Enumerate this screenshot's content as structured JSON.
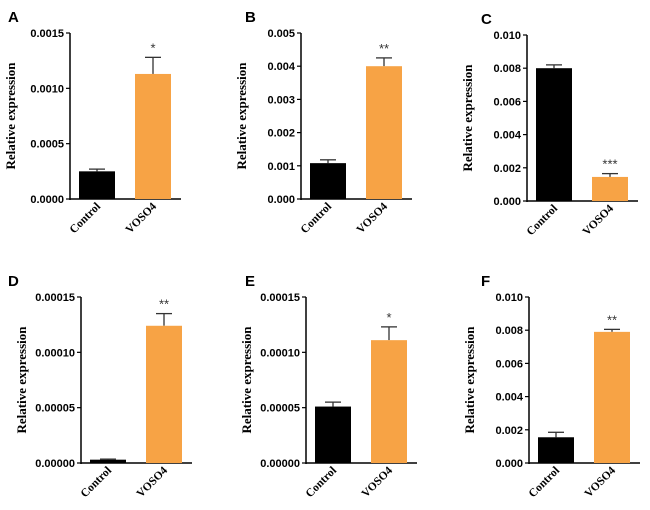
{
  "colors": {
    "control": "#000000",
    "treatment": "#F7A345",
    "axis": "#000000",
    "error": "#333333"
  },
  "chart_data": [
    {
      "type": "bar",
      "panel": "A",
      "ylabel": "Relative expression",
      "categories": [
        "Control",
        "VOSO4"
      ],
      "values": [
        0.00025,
        0.00113
      ],
      "errors": [
        2e-05,
        0.00015
      ],
      "significance": [
        "",
        "*"
      ],
      "ylim": [
        0,
        0.0015
      ],
      "yticks": [
        "0.0000",
        "0.0005",
        "0.0010",
        "0.0015"
      ]
    },
    {
      "type": "bar",
      "panel": "B",
      "ylabel": "Relative expression",
      "categories": [
        "Control",
        "VOSO4"
      ],
      "values": [
        0.00108,
        0.004
      ],
      "errors": [
        0.0001,
        0.00025
      ],
      "significance": [
        "",
        "**"
      ],
      "ylim": [
        0,
        0.005
      ],
      "yticks": [
        "0.000",
        "0.001",
        "0.002",
        "0.003",
        "0.004",
        "0.005"
      ]
    },
    {
      "type": "bar",
      "panel": "C",
      "ylabel": "Relative expression",
      "categories": [
        "Control",
        "VOSO4"
      ],
      "values": [
        0.008,
        0.00145
      ],
      "errors": [
        0.0002,
        0.0002
      ],
      "significance": [
        "",
        "***"
      ],
      "ylim": [
        0,
        0.01
      ],
      "yticks": [
        "0.000",
        "0.002",
        "0.004",
        "0.006",
        "0.008",
        "0.010"
      ]
    },
    {
      "type": "bar",
      "panel": "D",
      "ylabel": "Relative expression",
      "categories": [
        "Control",
        "VOSO4"
      ],
      "values": [
        3e-06,
        0.000124
      ],
      "errors": [
        5e-07,
        1.1e-05
      ],
      "significance": [
        "",
        "**"
      ],
      "ylim": [
        0,
        0.00015
      ],
      "yticks": [
        "0.00000",
        "0.00005",
        "0.00010",
        "0.00015"
      ]
    },
    {
      "type": "bar",
      "panel": "E",
      "ylabel": "Relative expression",
      "categories": [
        "Control",
        "VOSO4"
      ],
      "values": [
        5.1e-05,
        0.000111
      ],
      "errors": [
        4e-06,
        1.2e-05
      ],
      "significance": [
        "",
        "*"
      ],
      "ylim": [
        0,
        0.00015
      ],
      "yticks": [
        "0.00000",
        "0.00005",
        "0.00010",
        "0.00015"
      ]
    },
    {
      "type": "bar",
      "panel": "F",
      "ylabel": "Relative expression",
      "categories": [
        "Control",
        "VOSO4"
      ],
      "values": [
        0.00155,
        0.0079
      ],
      "errors": [
        0.0003,
        0.00015
      ],
      "significance": [
        "",
        "**"
      ],
      "ylim": [
        0,
        0.01
      ],
      "yticks": [
        "0.000",
        "0.002",
        "0.004",
        "0.006",
        "0.008",
        "0.010"
      ]
    }
  ]
}
